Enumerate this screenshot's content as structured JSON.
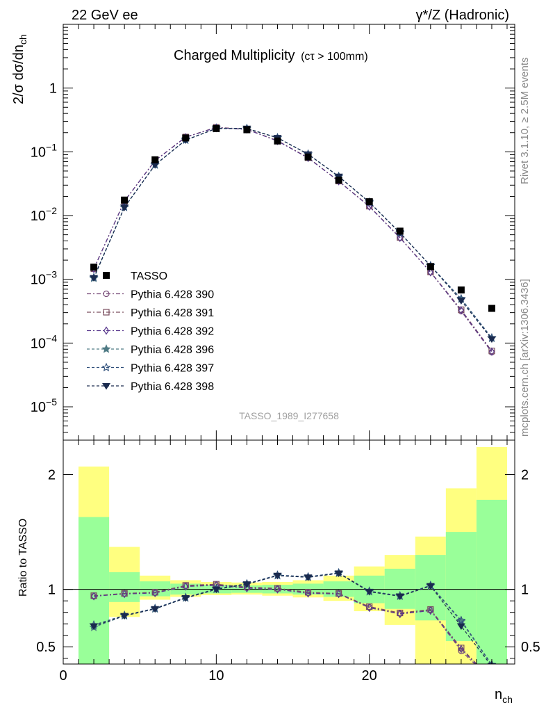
{
  "header": {
    "left": "22 GeV ee",
    "right": "γ*/Z (Hadronic)"
  },
  "side_labels": {
    "top": "Rivet 3.1.10, ≥ 2.5M events",
    "bottom": "mcplots.cern.ch [arXiv:1306.3436]"
  },
  "chart_data": {
    "type": "line",
    "title": "Charged Multiplicity",
    "title_suffix": "(cτ > 100mm)",
    "watermark": "TASSO_1989_I277658",
    "xlabel": "n_ch",
    "ylabel": "2/σ dσ/dn_ch",
    "ratio_ylabel": "Ratio to TASSO",
    "xlim": [
      0,
      29.5
    ],
    "ylim": [
      3e-06,
      10
    ],
    "yscale": "log",
    "ratio_ylim": [
      0.35,
      2.3
    ],
    "x_ticks": [
      "0",
      "10",
      "20"
    ],
    "y_ticks": [
      "10^-5",
      "10^-4",
      "10^-3",
      "10^-2",
      "10^-1",
      "1"
    ],
    "ratio_ticks": [
      "0.5",
      "1",
      "2"
    ],
    "x": [
      2,
      4,
      6,
      8,
      10,
      12,
      14,
      16,
      18,
      20,
      22,
      24,
      26,
      28
    ],
    "data": {
      "name": "TASSO",
      "values": [
        0.00155,
        0.0175,
        0.075,
        0.165,
        0.232,
        0.222,
        0.148,
        0.083,
        0.036,
        0.0165,
        0.0057,
        0.00158,
        0.00068,
        0.00035
      ]
    },
    "bands": {
      "x_edges": [
        1,
        3,
        5,
        7,
        9,
        11,
        13,
        15,
        17,
        19,
        21,
        23,
        25,
        27,
        29
      ],
      "inner_low": [
        0.35,
        0.89,
        0.94,
        0.955,
        0.965,
        0.97,
        0.965,
        0.955,
        0.935,
        0.88,
        0.83,
        0.73,
        0.55,
        0.2
      ],
      "inner_high": [
        1.63,
        1.15,
        1.07,
        1.05,
        1.04,
        1.035,
        1.04,
        1.05,
        1.07,
        1.12,
        1.18,
        1.3,
        1.5,
        1.78
      ],
      "outer_low": [
        0.44,
        0.76,
        0.91,
        0.935,
        0.95,
        0.955,
        0.945,
        0.93,
        0.9,
        0.81,
        0.69,
        0.35,
        0.35,
        0.35
      ],
      "outer_high": [
        2.07,
        1.37,
        1.12,
        1.08,
        1.065,
        1.06,
        1.065,
        1.08,
        1.12,
        1.2,
        1.3,
        1.46,
        1.88,
        2.24
      ]
    },
    "legend_position": "left",
    "series": [
      {
        "name": "Pythia 6.428 390",
        "color": "#7a4e7a",
        "marker": "circle-open",
        "dash": "6,3,2,3",
        "ratio": [
          0.94,
          0.965,
          0.97,
          1.03,
          1.04,
          1.015,
          1.005,
          0.97,
          0.965,
          0.845,
          0.79,
          0.82,
          0.465,
          0.205
        ]
      },
      {
        "name": "Pythia 6.428 391",
        "color": "#7a4e5e",
        "marker": "square-open",
        "dash": "6,3,2,3",
        "ratio": [
          0.945,
          0.965,
          0.975,
          1.035,
          1.045,
          1.02,
          1.01,
          0.975,
          0.965,
          0.85,
          0.795,
          0.825,
          0.49,
          0.215
        ]
      },
      {
        "name": "Pythia 6.428 392",
        "color": "#5a3a8e",
        "marker": "diamond-open",
        "dash": "6,3,2,3",
        "ratio": [
          0.94,
          0.96,
          0.968,
          1.025,
          1.035,
          1.01,
          1.0,
          0.965,
          0.96,
          0.84,
          0.785,
          0.815,
          0.48,
          0.21
        ]
      },
      {
        "name": "Pythia 6.428 396",
        "color": "#4e7a84",
        "marker": "star-filled",
        "dash": "4,3",
        "ratio": [
          0.67,
          0.77,
          0.83,
          0.925,
          1.0,
          1.045,
          1.12,
          1.105,
          1.14,
          0.98,
          0.94,
          1.03,
          0.72,
          0.34
        ]
      },
      {
        "name": "Pythia 6.428 397",
        "color": "#2e4e7a",
        "marker": "star-open",
        "dash": "4,3",
        "ratio": [
          0.69,
          0.775,
          0.835,
          0.93,
          1.005,
          1.05,
          1.125,
          1.11,
          1.145,
          0.985,
          0.945,
          1.035,
          0.73,
          0.345
        ]
      },
      {
        "name": "Pythia 6.428 398",
        "color": "#1a2a4e",
        "marker": "triangle-down-filled",
        "dash": "4,3",
        "ratio": [
          0.68,
          0.77,
          0.83,
          0.925,
          1.0,
          1.045,
          1.12,
          1.105,
          1.14,
          0.98,
          0.94,
          1.03,
          0.68,
          0.33
        ]
      }
    ]
  }
}
